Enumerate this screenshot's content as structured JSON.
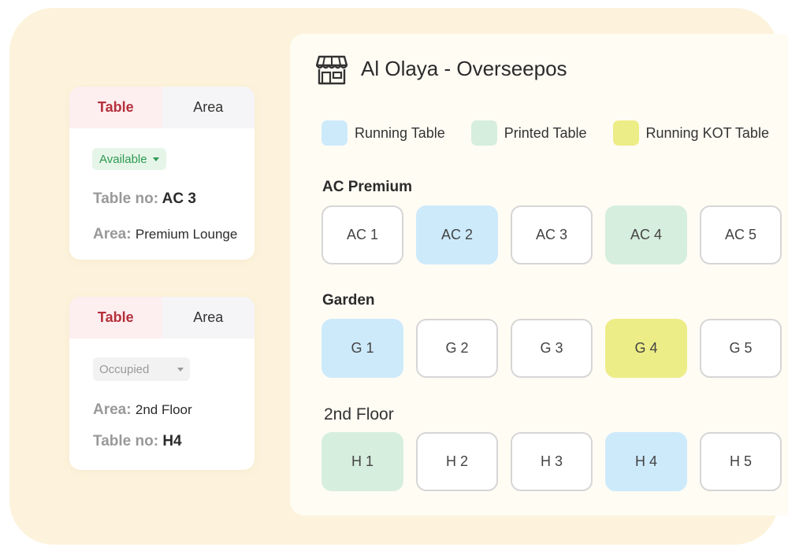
{
  "colors": {
    "running": "#cdeafb",
    "printed": "#d6eedd",
    "kot": "#eded87",
    "accent": "#b4303a",
    "available": "#2f9a52"
  },
  "cards": [
    {
      "tabs": {
        "table": "Table",
        "area": "Area"
      },
      "status": "Available",
      "line1": {
        "label": "Table no:",
        "value": "AC 3"
      },
      "line2": {
        "label": "Area:",
        "value": "Premium Lounge"
      }
    },
    {
      "tabs": {
        "table": "Table",
        "area": "Area"
      },
      "status": "Occupied",
      "line1": {
        "label": "Area:",
        "value": "2nd Floor"
      },
      "line2": {
        "label": "Table no:",
        "value": "H4"
      }
    }
  ],
  "panel": {
    "title": "Al Olaya - Overseepos",
    "icon": "store-icon",
    "legend": [
      {
        "label": "Running Table",
        "status": "running"
      },
      {
        "label": "Printed Table",
        "status": "printed"
      },
      {
        "label": "Running KOT Table",
        "status": "kot"
      }
    ],
    "sections": [
      {
        "name": "AC Premium",
        "tables": [
          {
            "label": "AC 1",
            "status": "empty"
          },
          {
            "label": "AC 2",
            "status": "running"
          },
          {
            "label": "AC 3",
            "status": "empty"
          },
          {
            "label": "AC 4",
            "status": "printed"
          },
          {
            "label": "AC 5",
            "status": "empty"
          }
        ]
      },
      {
        "name": "Garden",
        "tables": [
          {
            "label": "G 1",
            "status": "running"
          },
          {
            "label": "G 2",
            "status": "empty"
          },
          {
            "label": "G 3",
            "status": "empty"
          },
          {
            "label": "G 4",
            "status": "kot"
          },
          {
            "label": "G 5",
            "status": "empty"
          }
        ]
      },
      {
        "name": "2nd Floor",
        "tables": [
          {
            "label": "H 1",
            "status": "printed"
          },
          {
            "label": "H 2",
            "status": "empty"
          },
          {
            "label": "H 3",
            "status": "empty"
          },
          {
            "label": "H 4",
            "status": "running"
          },
          {
            "label": "H 5",
            "status": "empty"
          }
        ]
      }
    ]
  }
}
